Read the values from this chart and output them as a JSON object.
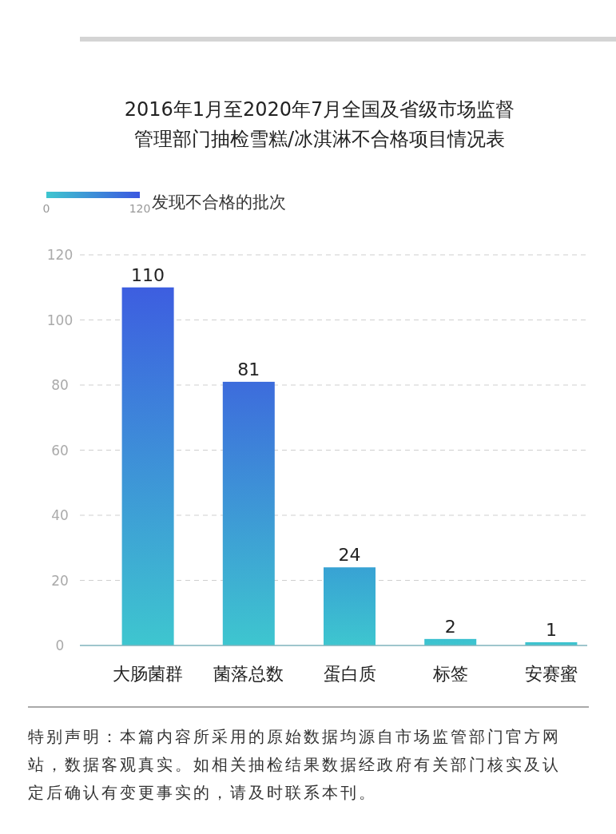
{
  "chart_data": {
    "type": "bar",
    "title": "2016年1月至2020年7月全国及省级市场监督管理部门抽检雪糕/冰淇淋不合格项目情况表",
    "categories": [
      "大肠菌群",
      "菌落总数",
      "蛋白质",
      "标签",
      "安赛蜜"
    ],
    "values": [
      110,
      81,
      24,
      2,
      1
    ],
    "colors": [
      "#3d5ee0",
      "#3d6cdc",
      "#38a2d4",
      "#3bc0d0",
      "#3cc2cf"
    ],
    "clabel": "发现不合格的批次",
    "clim": [
      0,
      120
    ],
    "cticks": [
      0,
      120
    ],
    "ylim": [
      0,
      120
    ],
    "yticks": [
      0,
      20,
      40,
      60,
      80,
      100,
      120
    ],
    "grid": "y",
    "data_labels": true,
    "annotations": [
      "特别声明：本篇内容所采用的原始数据均源自市场监管部门官方网站，数据客观真实。如相关抽检结果数据经政府有关部门核实及认定后确认有变更事实的，请及时联系本刊。"
    ]
  }
}
